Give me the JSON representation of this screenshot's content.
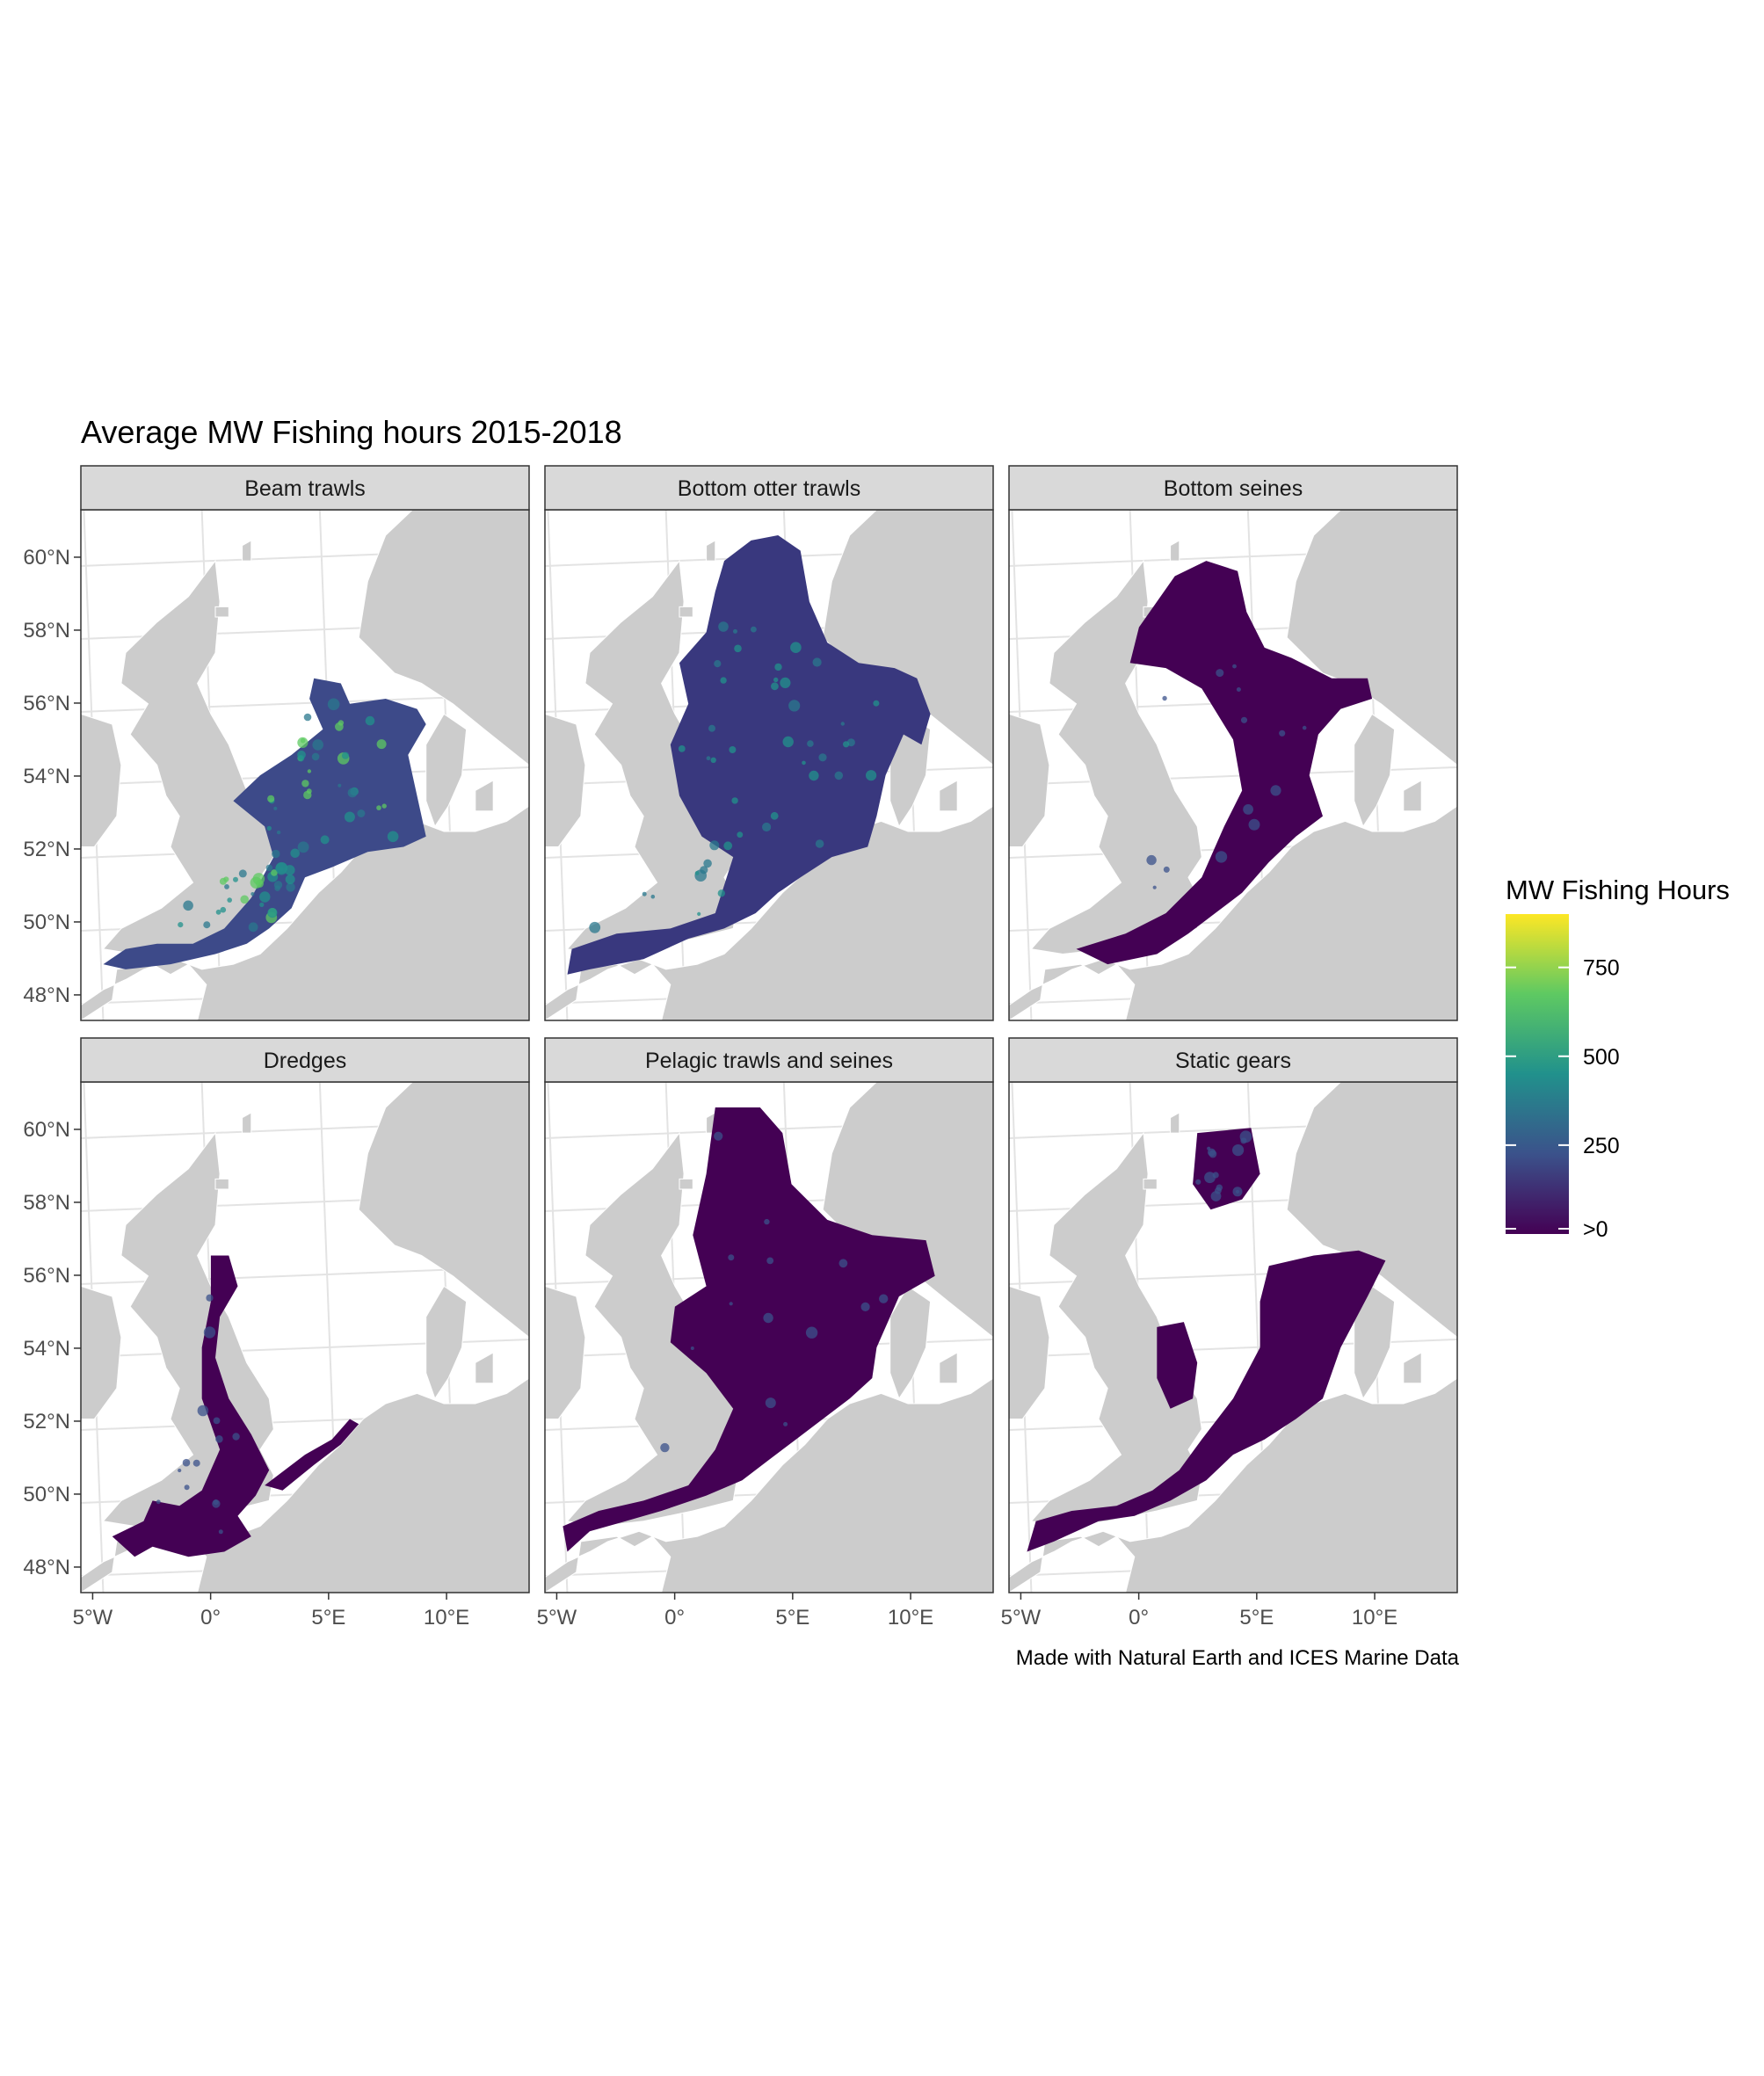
{
  "title": "Average MW Fishing hours 2015-2018",
  "caption": "Made with Natural Earth and ICES Marine Data",
  "colors": {
    "land": "#cccccc",
    "graticule": "#e3e3e3",
    "strip_fill": "#d9d9d9",
    "panel_border": "#333333",
    "scale_low": "#440154",
    "scale_mid1": "#3b528b",
    "scale_mid2": "#21918c",
    "scale_mid3": "#5ec962",
    "scale_high": "#fde725"
  },
  "axes": {
    "latitude_ticks": [
      "60°N",
      "58°N",
      "56°N",
      "54°N",
      "52°N",
      "50°N",
      "48°N"
    ],
    "longitude_ticks": [
      "5°W",
      "0°",
      "5°E",
      "10°E"
    ],
    "latitude_values": [
      60,
      58,
      56,
      54,
      52,
      50,
      48
    ],
    "longitude_values": [
      -5,
      0,
      5,
      10
    ],
    "lat_range": [
      47.3,
      61.3
    ],
    "lon_range": [
      -5.5,
      13.5
    ]
  },
  "legend": {
    "title": "MW Fishing Hours",
    "labels": [
      "750",
      "500",
      "250",
      ">0"
    ],
    "values": [
      750,
      500,
      250,
      0
    ],
    "range": [
      0,
      900
    ]
  },
  "panels": [
    {
      "title": "Beam trawls",
      "intensity": "high"
    },
    {
      "title": "Bottom otter trawls",
      "intensity": "medium"
    },
    {
      "title": "Bottom seines",
      "intensity": "low"
    },
    {
      "title": "Dredges",
      "intensity": "low"
    },
    {
      "title": "Pelagic trawls and seines",
      "intensity": "low"
    },
    {
      "title": "Static gears",
      "intensity": "low"
    }
  ]
}
